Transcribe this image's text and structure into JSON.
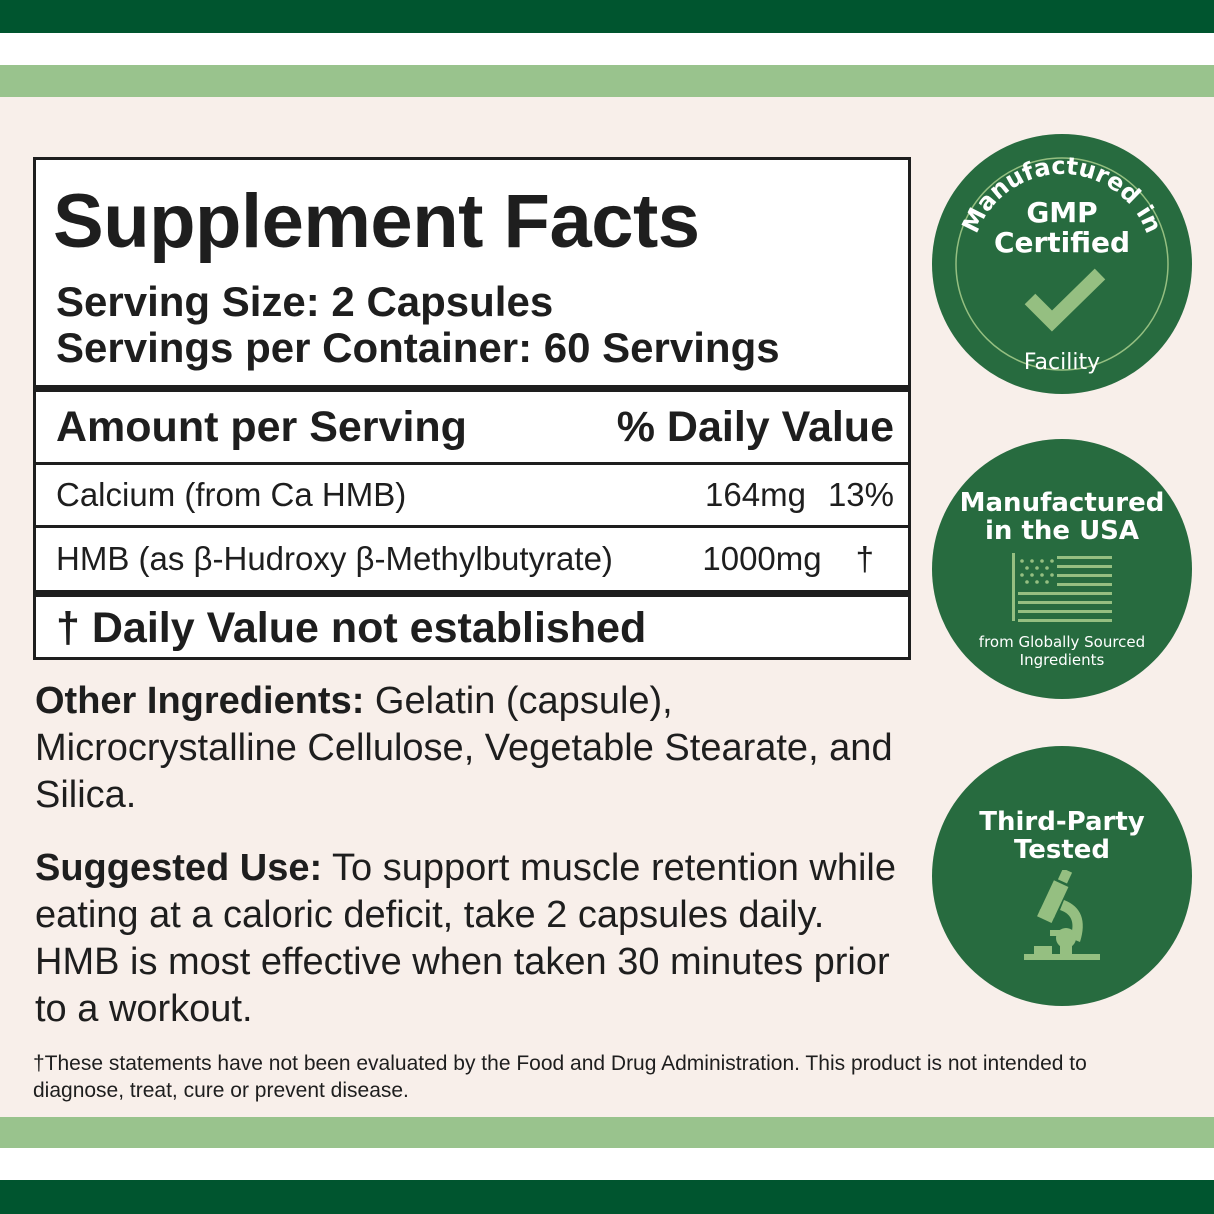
{
  "colors": {
    "dark_green": "#00552f",
    "light_green": "#99c38d",
    "badge_green": "#276b3f",
    "accent": "#95bf81",
    "background": "#f8efea"
  },
  "facts": {
    "title": "Supplement Facts",
    "serving_size": "Serving Size: 2 Capsules",
    "servings_per_container": "Servings per Container: 60 Servings",
    "header": {
      "amount": "Amount per Serving",
      "dv": "% Daily Value"
    },
    "rows": [
      {
        "name": "Calcium (from Ca HMB)",
        "amount": "164mg",
        "dv": "13%"
      },
      {
        "name": "HMB (as β-Hudroxy β-Methylbutyrate)",
        "amount": "1000mg",
        "dv": "†"
      }
    ],
    "footnote": "† Daily Value not established"
  },
  "other": {
    "label": "Other Ingredients:",
    "text": " Gelatin (capsule), Microcrystalline Cellulose, Vegetable Stearate, and Silica."
  },
  "use": {
    "label": "Suggested Use:",
    "text": " To support muscle retention while eating at a caloric deficit, take 2 capsules daily. HMB is most effective when taken 30 minutes prior to a workout."
  },
  "disclaimer": "†These statements have not been evaluated by the Food and Drug Administration. This product is not intended to diagnose, treat, cure or prevent disease.",
  "badges": {
    "gmp": {
      "arc_top": "Manufactured in",
      "line1": "GMP",
      "line2": "Certified",
      "arc_bottom": "Facility",
      "icon": "check-icon"
    },
    "usa": {
      "line1": "Manufactured",
      "line2": "in the USA",
      "sub1": "from Globally Sourced",
      "sub2": "Ingredients",
      "icon": "flag-icon"
    },
    "tested": {
      "line1": "Third-Party",
      "line2": "Tested",
      "icon": "microscope-icon"
    }
  }
}
